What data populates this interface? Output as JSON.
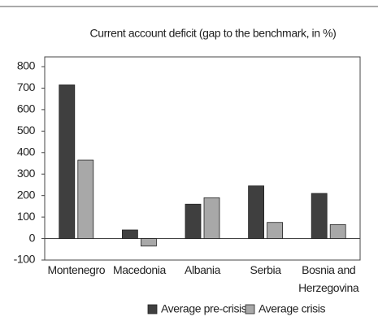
{
  "chart_data": {
    "type": "bar",
    "title": "Current account deficit (gap to the benchmark, in %)",
    "categories": [
      "Montenegro",
      "Macedonia",
      "Albania",
      "Serbia",
      "Bosnia and Herzegovina"
    ],
    "series": [
      {
        "name": "Average pre-crisis",
        "color": "#3f3f3f",
        "values": [
          715,
          40,
          160,
          245,
          210
        ]
      },
      {
        "name": "Average crisis",
        "color": "#a8a8a8",
        "values": [
          365,
          -35,
          190,
          75,
          65
        ]
      }
    ],
    "ylim": [
      -100,
      800
    ],
    "yticks": [
      -100,
      0,
      100,
      200,
      300,
      400,
      500,
      600,
      700,
      800
    ],
    "grid": false,
    "legend": "bottom"
  }
}
